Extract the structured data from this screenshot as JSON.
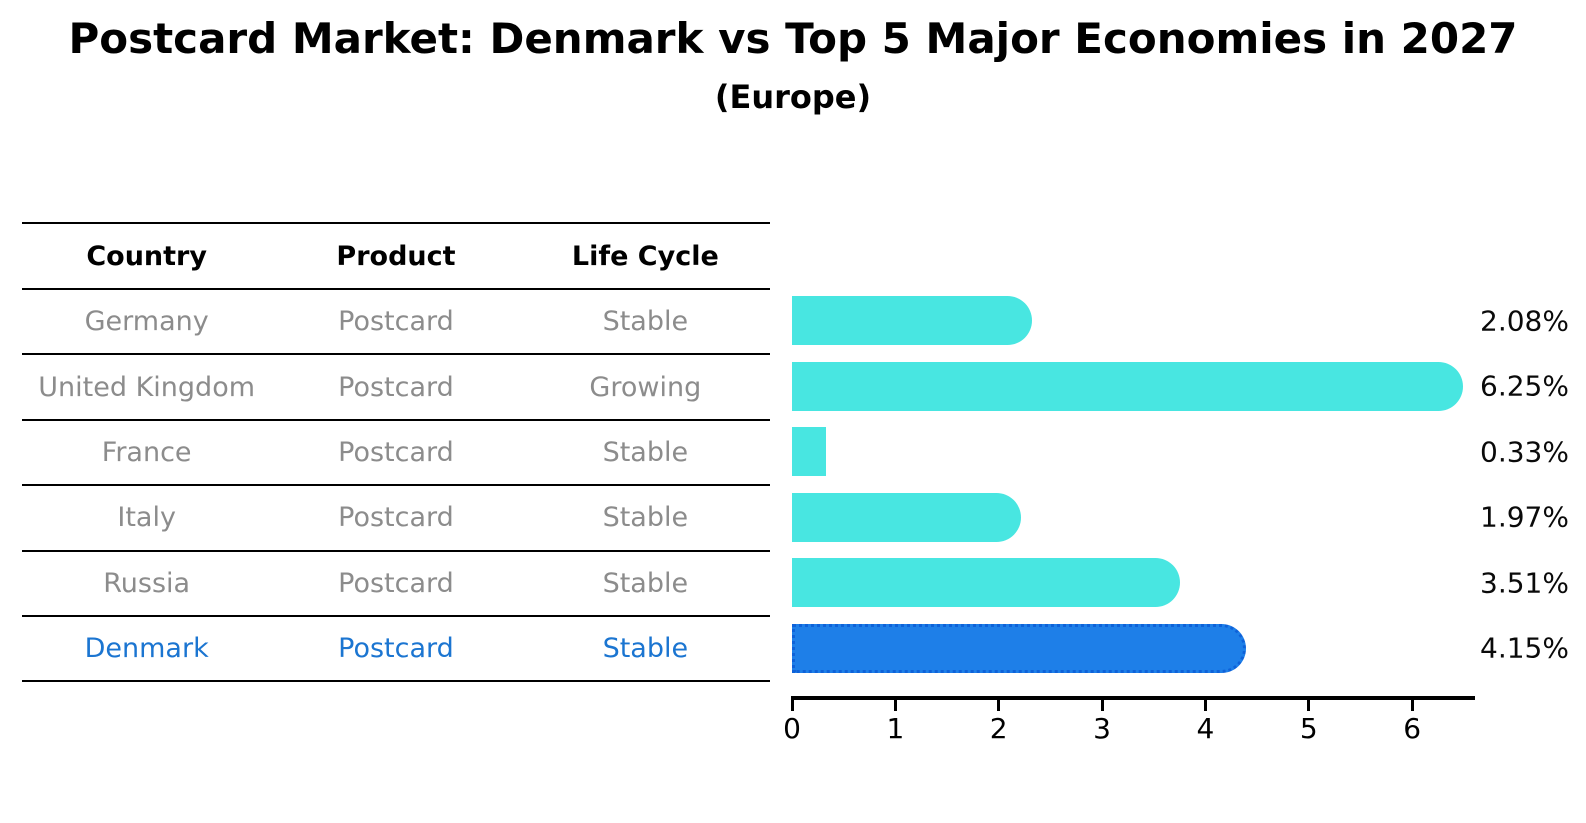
{
  "title": "Postcard Market: Denmark vs Top 5 Major Economies in 2027",
  "subtitle": "(Europe)",
  "table": {
    "headers": [
      "Country",
      "Product",
      "Life Cycle"
    ],
    "rows": [
      {
        "country": "Germany",
        "product": "Postcard",
        "life_cycle": "Stable",
        "highlight": false
      },
      {
        "country": "United Kingdom",
        "product": "Postcard",
        "life_cycle": "Growing",
        "highlight": false
      },
      {
        "country": "France",
        "product": "Postcard",
        "life_cycle": "Stable",
        "highlight": false
      },
      {
        "country": "Italy",
        "product": "Postcard",
        "life_cycle": "Stable",
        "highlight": false
      },
      {
        "country": "Russia",
        "product": "Postcard",
        "life_cycle": "Stable",
        "highlight": false
      },
      {
        "country": "Denmark",
        "product": "Postcard",
        "life_cycle": "Stable",
        "highlight": true
      }
    ]
  },
  "chart_data": {
    "type": "bar",
    "orientation": "horizontal",
    "categories": [
      "Germany",
      "United Kingdom",
      "France",
      "Italy",
      "Russia",
      "Denmark"
    ],
    "values": [
      2.08,
      6.25,
      0.33,
      1.97,
      3.51,
      4.15
    ],
    "value_labels": [
      "2.08%",
      "6.25%",
      "0.33%",
      "1.97%",
      "3.51%",
      "4.15%"
    ],
    "x_ticks": [
      0,
      1,
      2,
      3,
      4,
      5,
      6
    ],
    "xlim": [
      0,
      6.6
    ],
    "grid": false,
    "legend": false,
    "highlight_category": "Denmark",
    "colors": {
      "bar": "#48E6E1",
      "highlight_bar": "#1E7FE8",
      "highlight_bar_border": "#0E62D9",
      "highlight_text": "#1B75D1",
      "row_text": "#8C8C8C",
      "axis": "#000000"
    }
  }
}
